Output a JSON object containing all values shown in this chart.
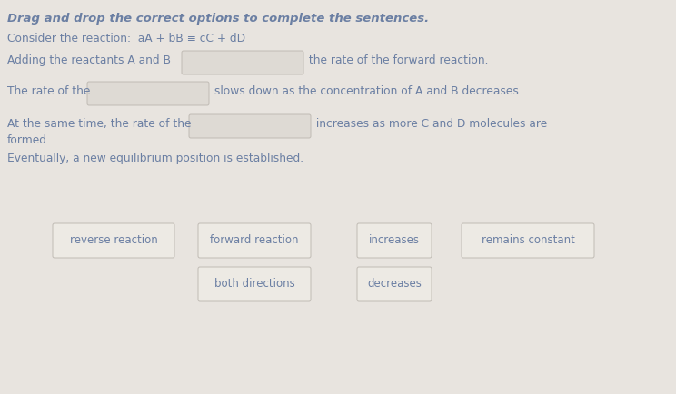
{
  "background_color": "#e8e4df",
  "text_color": "#6b7fa3",
  "box_face_color": "#dedad4",
  "box_edge_color": "#c0bbb4",
  "option_face_color": "#edeae4",
  "option_edge_color": "#c0bbb4",
  "title": "Drag and drop the correct options to complete the sentences.",
  "line0": "Consider the reaction:  aA + bB ≡ cC + dD",
  "line2_pre": "Adding the reactants A and B",
  "line2_post": " the rate of the forward reaction.",
  "line3_pre": "The rate of the",
  "line3_post": " slows down as the concentration of A and B decreases.",
  "line4_pre": "At the same time, the rate of the",
  "line4_post": " increases as more C and D molecules are",
  "line4_cont": "formed.",
  "line5": "Eventually, a new equilibrium position is established.",
  "options_row1": [
    {
      "label": "reverse reaction"
    },
    {
      "label": "forward reaction"
    },
    {
      "label": "increases"
    },
    {
      "label": "remains constant"
    }
  ],
  "options_row2": [
    {
      "label": "both directions"
    },
    {
      "label": "decreases"
    }
  ],
  "font_size_title": 9.5,
  "font_size_body": 8.8,
  "font_size_options": 8.5
}
